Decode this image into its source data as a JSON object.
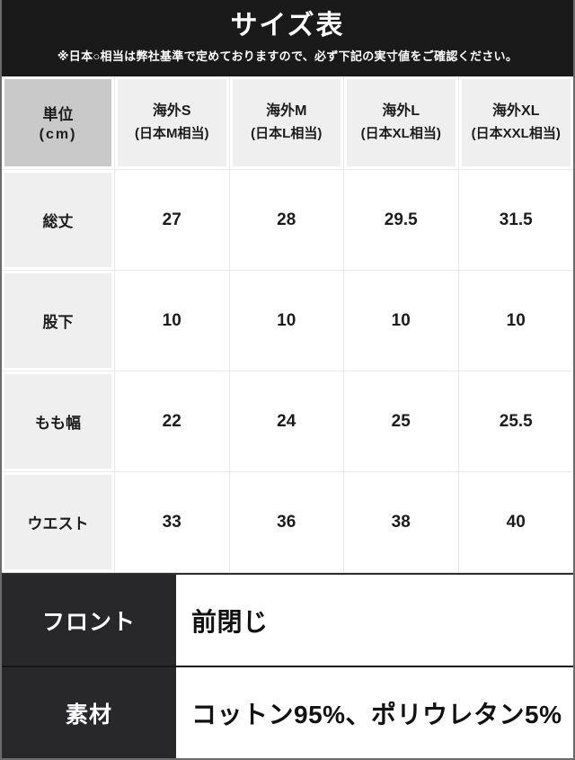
{
  "header": {
    "title": "サイズ表",
    "note": "※日本○相当は弊社基準で定めておりますので、必ず下記の実寸値をご確認ください。"
  },
  "table": {
    "unit_label": "単位",
    "unit_sub": "(cm)",
    "columns": [
      {
        "size": "海外S",
        "jp": "(日本M相当)"
      },
      {
        "size": "海外M",
        "jp": "(日本L相当)"
      },
      {
        "size": "海外L",
        "jp": "(日本XL相当)"
      },
      {
        "size": "海外XL",
        "jp": "(日本XXL相当)"
      }
    ],
    "rows": [
      {
        "label": "総丈",
        "values": [
          "27",
          "28",
          "29.5",
          "31.5"
        ]
      },
      {
        "label": "股下",
        "values": [
          "10",
          "10",
          "10",
          "10"
        ]
      },
      {
        "label": "もも幅",
        "values": [
          "22",
          "24",
          "25",
          "25.5"
        ]
      },
      {
        "label": "ウエスト",
        "values": [
          "33",
          "36",
          "38",
          "40"
        ]
      }
    ]
  },
  "details": [
    {
      "label": "フロント",
      "value": "前閉じ"
    },
    {
      "label": "素材",
      "value": "コットン95%、ポリウレタン5%"
    }
  ],
  "colors": {
    "header_bg": "#1a1a1a",
    "detail_label_bg": "#28282a",
    "unit_cell_bg": "#c9c9c9",
    "gray_cell_bg": "#efefef",
    "grid_line": "#e9e9e9",
    "text": "#1c1c1c"
  }
}
